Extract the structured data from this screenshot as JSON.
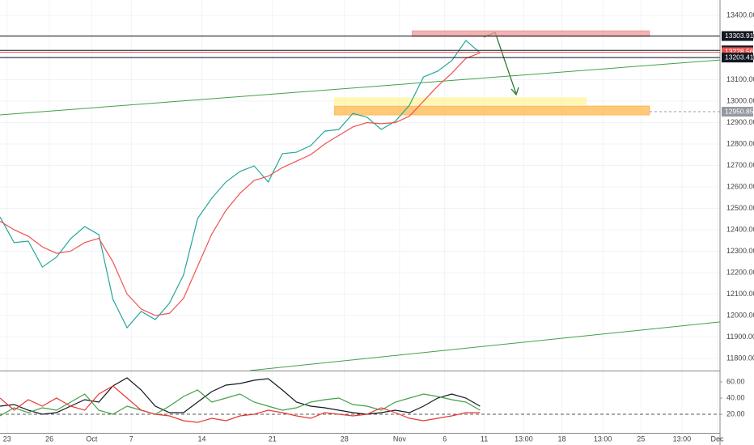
{
  "chart_data": [
    {
      "type": "line",
      "x": [
        0,
        1,
        2,
        3,
        4,
        5,
        6,
        7,
        8,
        9,
        10,
        11,
        12,
        13,
        14,
        15,
        16,
        17,
        18,
        19,
        20,
        21,
        22,
        23,
        24,
        25,
        26,
        27,
        28,
        29,
        30,
        31,
        32,
        33,
        34
      ],
      "series": [
        {
          "color": "#26a69a",
          "values": [
            12460,
            12340,
            12347,
            12226,
            12272,
            12358,
            12415,
            12377,
            12075,
            11943,
            12019,
            11981,
            12057,
            12189,
            12453,
            12547,
            12623,
            12672,
            12698,
            12623,
            12755,
            12762,
            12792,
            12860,
            12868,
            12943,
            12925,
            12868,
            12906,
            12981,
            13113,
            13140,
            13189,
            13283,
            13226
          ]
        },
        {
          "color": "#ef5350",
          "values": [
            12440,
            12400,
            12370,
            12320,
            12290,
            12300,
            12340,
            12360,
            12250,
            12100,
            12030,
            12000,
            12010,
            12080,
            12230,
            12380,
            12490,
            12570,
            12630,
            12650,
            12690,
            12720,
            12750,
            12800,
            12840,
            12880,
            12900,
            12895,
            12900,
            12930,
            13000,
            13070,
            13130,
            13200,
            13225
          ]
        }
      ],
      "xlim": [
        0,
        51
      ],
      "xticks": [
        {
          "value": 0.5,
          "label": "23"
        },
        {
          "value": 3.5,
          "label": "26"
        },
        {
          "value": 6.5,
          "label": "Oct"
        },
        {
          "value": 9.3,
          "label": "7"
        },
        {
          "value": 14.3,
          "label": "14"
        },
        {
          "value": 19.3,
          "label": "21"
        },
        {
          "value": 24.4,
          "label": "28"
        },
        {
          "value": 28.3,
          "label": "Nov"
        },
        {
          "value": 31.5,
          "label": "6"
        },
        {
          "value": 34.3,
          "label": "11"
        },
        {
          "value": 37.1,
          "label": "13:00"
        },
        {
          "value": 39.8,
          "label": "18"
        },
        {
          "value": 42.7,
          "label": "13:00"
        },
        {
          "value": 45.4,
          "label": "25"
        },
        {
          "value": 48.3,
          "label": "13:00"
        },
        {
          "value": 50.8,
          "label": "Dec"
        }
      ],
      "ylim": [
        11743,
        13472
      ],
      "yticks": [
        {
          "value": 11800,
          "label": "11800.00"
        },
        {
          "value": 11900,
          "label": "11900.00"
        },
        {
          "value": 12000,
          "label": "12000.00"
        },
        {
          "value": 12100,
          "label": "12100.00"
        },
        {
          "value": 12200,
          "label": "12200.00"
        },
        {
          "value": 12300,
          "label": "12300.00"
        },
        {
          "value": 12400,
          "label": "12400.00"
        },
        {
          "value": 12500,
          "label": "12500.00"
        },
        {
          "value": 12600,
          "label": "12600.00"
        },
        {
          "value": 12700,
          "label": "12700.00"
        },
        {
          "value": 12800,
          "label": "12800.00"
        },
        {
          "value": 12900,
          "label": "12900.00"
        },
        {
          "value": 13000,
          "label": "13000.00"
        },
        {
          "value": 13100,
          "label": "13100.00"
        },
        {
          "value": 13200,
          "label": "13200.00"
        },
        {
          "value": 13300,
          "label": "13300.00"
        },
        {
          "value": 13400,
          "label": "13400.00"
        }
      ],
      "grid": true,
      "price_lines": [
        {
          "value": 13303.91,
          "color": "#131722"
        },
        {
          "value": 13236.9,
          "color": "#131722"
        },
        {
          "value": 13228.56,
          "color": "#ef5350"
        },
        {
          "value": 13203.41,
          "color": "#131722"
        },
        {
          "value": 12950.85,
          "color": "#9598a1"
        }
      ],
      "zones": [
        {
          "x": [
            29.2,
            46
          ],
          "y": [
            13302,
            13328
          ],
          "color": "#ef9a9a"
        },
        {
          "x": [
            23.7,
            41.5
          ],
          "y": [
            12985,
            13015
          ],
          "color": "#fff59d"
        },
        {
          "x": [
            23.7,
            46
          ],
          "y": [
            12936,
            12977
          ],
          "color": "#ffb74d"
        }
      ],
      "trendlines": [
        {
          "x": [
            0,
            51
          ],
          "y": [
            12936,
            13192
          ],
          "color": "#43a047"
        },
        {
          "x": [
            17.7,
            51
          ],
          "y": [
            11743,
            11970
          ],
          "color": "#43a047"
        }
      ]
    },
    {
      "type": "line",
      "x": [
        0,
        1,
        2,
        3,
        4,
        5,
        6,
        7,
        8,
        9,
        10,
        11,
        12,
        13,
        14,
        15,
        16,
        17,
        18,
        19,
        20,
        21,
        22,
        23,
        24,
        25,
        26,
        27,
        28,
        29,
        30,
        31,
        32,
        33,
        34
      ],
      "series": [
        {
          "color": "#131722",
          "values": [
            30,
            32,
            25,
            20,
            22,
            30,
            38,
            35,
            55,
            65,
            50,
            30,
            22,
            22,
            35,
            48,
            56,
            58,
            62,
            64,
            50,
            35,
            30,
            28,
            25,
            22,
            20,
            22,
            25,
            22,
            30,
            40,
            45,
            40,
            30
          ]
        },
        {
          "color": "#43a047",
          "values": [
            18,
            28,
            22,
            28,
            25,
            35,
            45,
            25,
            20,
            30,
            25,
            20,
            30,
            42,
            50,
            35,
            40,
            45,
            35,
            30,
            25,
            28,
            35,
            38,
            40,
            32,
            30,
            25,
            35,
            40,
            45,
            42,
            38,
            35,
            25
          ]
        },
        {
          "color": "#e53935",
          "values": [
            40,
            25,
            38,
            30,
            40,
            30,
            25,
            45,
            55,
            40,
            25,
            20,
            18,
            12,
            10,
            15,
            12,
            18,
            20,
            25,
            22,
            18,
            15,
            22,
            20,
            18,
            20,
            28,
            22,
            15,
            12,
            15,
            18,
            22,
            22
          ]
        }
      ],
      "xlim": [
        0,
        51
      ],
      "ylim": [
        -3,
        72
      ],
      "yticks": [
        {
          "value": 20,
          "label": "20.00"
        },
        {
          "value": 40,
          "label": "40.00"
        },
        {
          "value": 60,
          "label": "60.00"
        }
      ],
      "reference_line": 20
    }
  ]
}
